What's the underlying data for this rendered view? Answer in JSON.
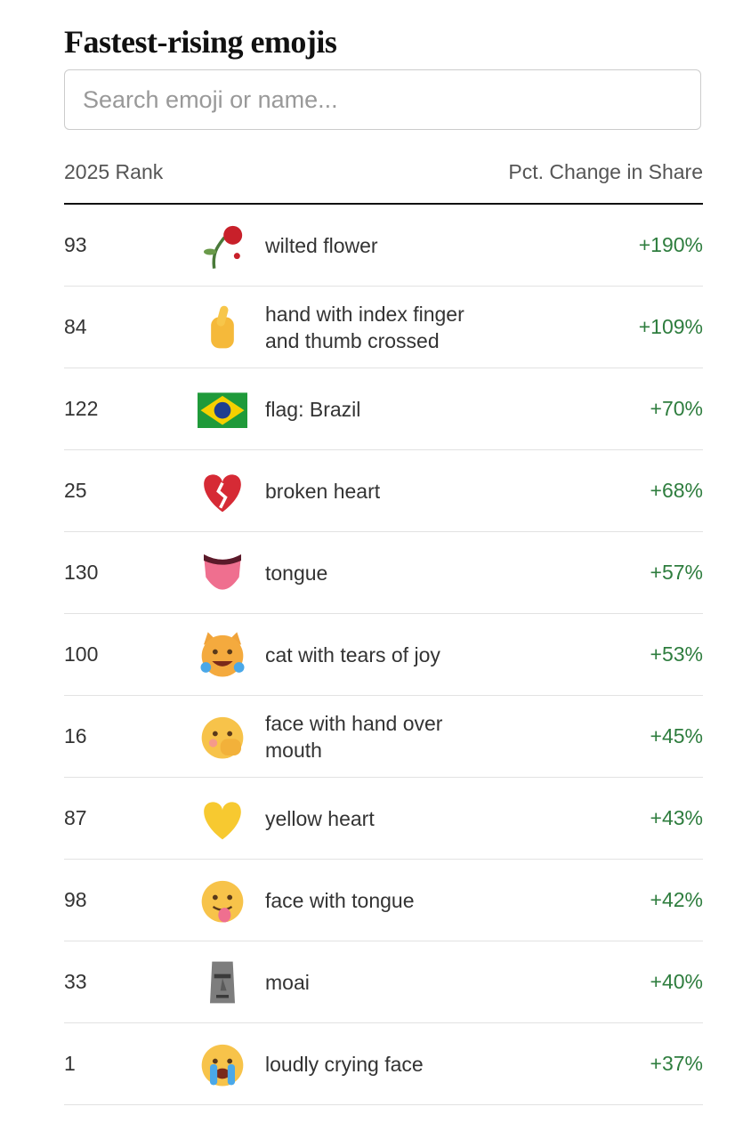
{
  "header": {
    "title": "Fastest-rising emojis"
  },
  "search": {
    "placeholder": "Search emoji or name..."
  },
  "table": {
    "columns": [
      "2025 Rank",
      "Pct. Change in Share"
    ],
    "rows": [
      [
        "93",
        "wilted flower",
        "+190%"
      ],
      [
        "84",
        "hand with index finger and thumb crossed",
        "+109%"
      ],
      [
        "122",
        "flag: Brazil",
        "+70%"
      ],
      [
        "25",
        "broken heart",
        "+68%"
      ],
      [
        "130",
        "tongue",
        "+57%"
      ],
      [
        "100",
        "cat with tears of joy",
        "+53%"
      ],
      [
        "16",
        "face with hand over mouth",
        "+45%"
      ],
      [
        "87",
        "yellow heart",
        "+43%"
      ],
      [
        "98",
        "face with tongue",
        "+42%"
      ],
      [
        "33",
        "moai",
        "+40%"
      ],
      [
        "1",
        "loudly crying face",
        "+37%"
      ]
    ]
  }
}
